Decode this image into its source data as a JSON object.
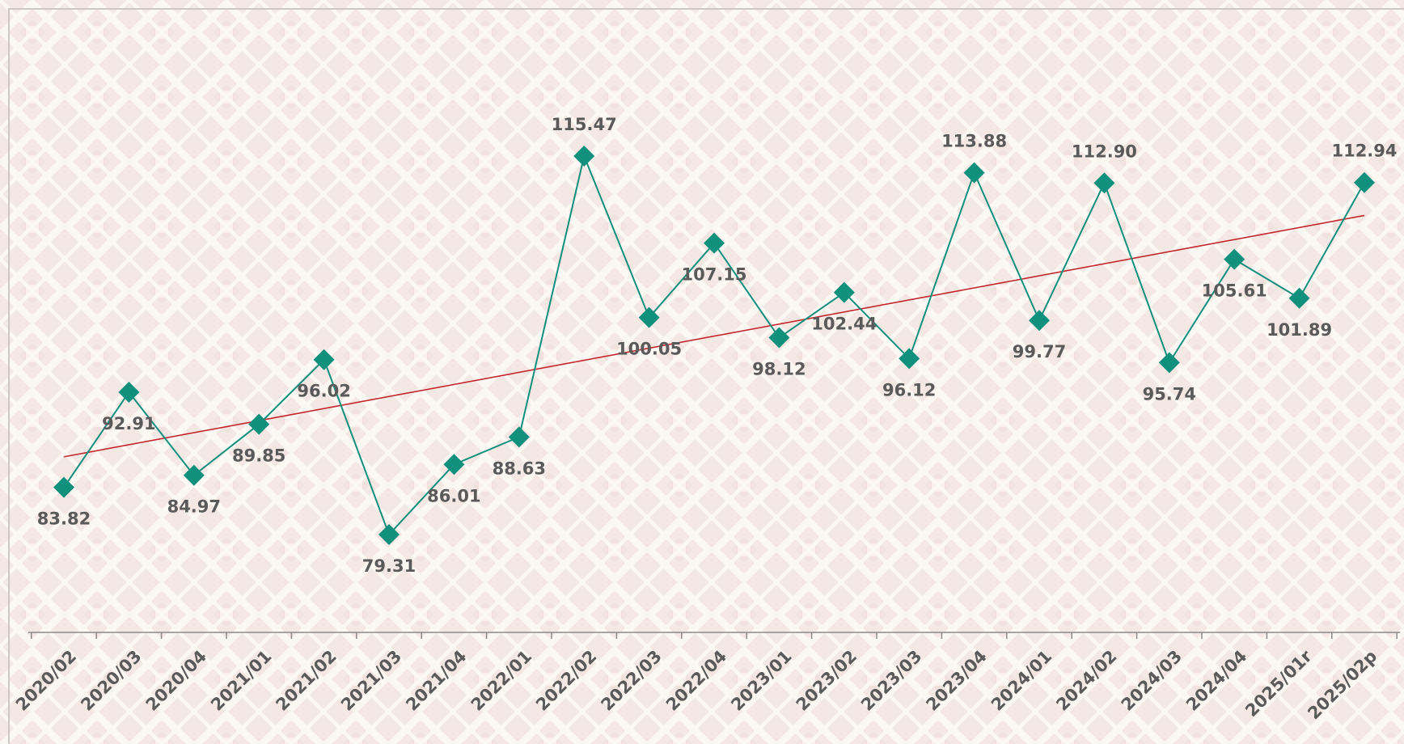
{
  "chart_data": {
    "type": "line",
    "categories": [
      "2020/02",
      "2020/03",
      "2020/04",
      "2021/01",
      "2021/02",
      "2021/03",
      "2021/04",
      "2022/01",
      "2022/02",
      "2022/03",
      "2022/04",
      "2023/01",
      "2023/02",
      "2023/03",
      "2023/04",
      "2024/01",
      "2024/02",
      "2024/03",
      "2024/04",
      "2025/01r",
      "2025/02p"
    ],
    "values": [
      83.82,
      92.91,
      84.97,
      89.85,
      96.02,
      79.31,
      86.01,
      88.63,
      115.47,
      100.05,
      107.15,
      98.12,
      102.44,
      96.12,
      113.88,
      99.77,
      112.9,
      95.74,
      105.61,
      101.89,
      112.94
    ],
    "value_labels": [
      "83.82",
      "92.91",
      "84.97",
      "89.85",
      "96.02",
      "79.31",
      "86.01",
      "88.63",
      "115.47",
      "100.05",
      "107.15",
      "98.12",
      "102.44",
      "96.12",
      "113.88",
      "99.77",
      "112.90",
      "95.74",
      "105.61",
      "101.89",
      "112.94"
    ],
    "color": "#12907e",
    "marker": "diamond",
    "trendline": {
      "color": "#c4262e"
    }
  }
}
